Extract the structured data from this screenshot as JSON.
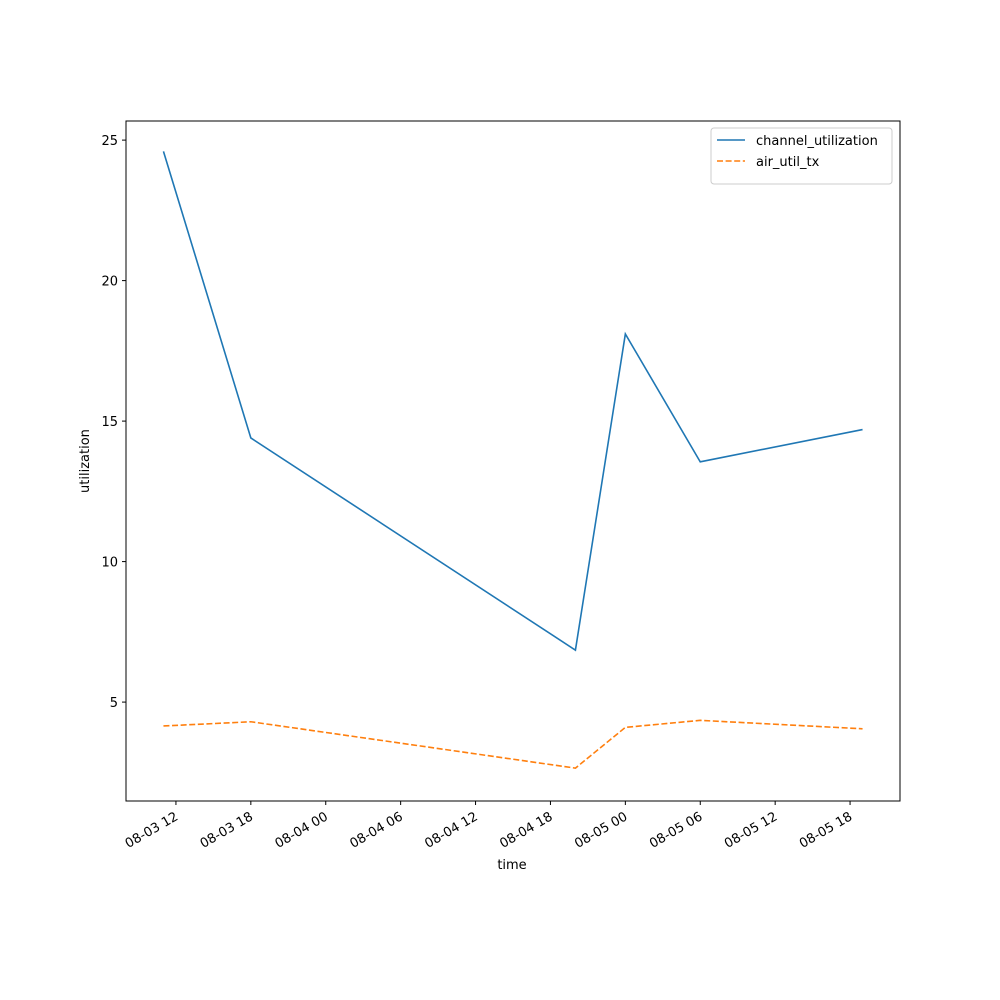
{
  "chart_data": {
    "type": "line",
    "x_label": "time",
    "y_label": "utilization",
    "x": [
      "08-03 11",
      "08-03 18",
      "08-04 20",
      "08-05 00",
      "08-05 06",
      "08-05 19"
    ],
    "series": [
      {
        "name": "channel_utilization",
        "color": "#1f77b4",
        "dash": "solid",
        "values": [
          24.6,
          14.4,
          6.85,
          18.1,
          13.55,
          14.7
        ]
      },
      {
        "name": "air_util_tx",
        "color": "#ff7f0e",
        "dash": "dashed",
        "values": [
          4.15,
          4.3,
          2.65,
          4.1,
          4.35,
          4.05
        ]
      }
    ],
    "xlim": [
      "08-03 08",
      "08-05 22"
    ],
    "xticks": [
      "08-03 12",
      "08-03 18",
      "08-04 00",
      "08-04 06",
      "08-04 12",
      "08-04 18",
      "08-05 00",
      "08-05 06",
      "08-05 12",
      "08-05 18"
    ],
    "ylim": [
      1.48,
      25.68
    ],
    "yticks": [
      5,
      10,
      15,
      20,
      25
    ],
    "legend": "upper right"
  }
}
